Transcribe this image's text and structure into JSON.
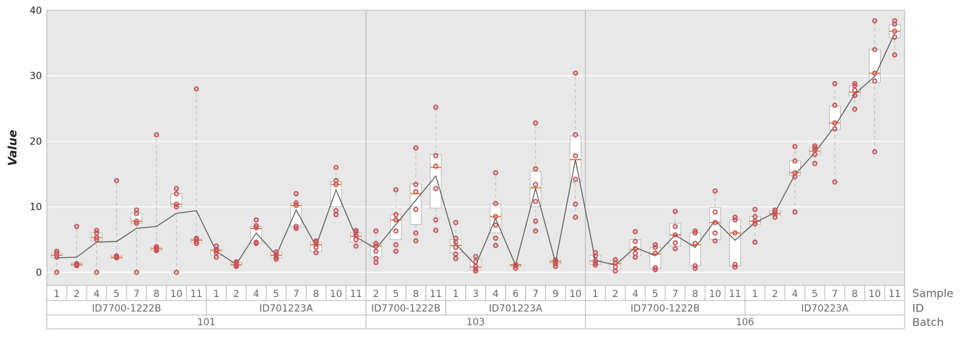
{
  "chart_data": {
    "type": "box",
    "ylabel": "Value",
    "ylim": [
      -2,
      40
    ],
    "yticks": [
      0,
      10,
      20,
      30,
      40
    ],
    "grid": true,
    "level_labels": [
      "Sample",
      "ID",
      "Batch"
    ],
    "colors": {
      "plot_bg": "#e8e8e8",
      "grid": "#ffffff",
      "box_fill": "#ffffff",
      "box_stroke": "#aaaaaa",
      "median": "#e8702a",
      "point": "#c8555a",
      "mean_line": "#555555",
      "whisker": "#bbbbbb",
      "label": "#666666"
    },
    "batches": [
      {
        "label": "101",
        "ids": [
          {
            "label": "ID7700-1222B",
            "samples": [
              {
                "label": "1",
                "q1": 2.3,
                "median": 2.6,
                "q3": 2.9,
                "wlo": 0.0,
                "whi": 3.2,
                "mean": 2.2,
                "points": [
                  0.0,
                  2.3,
                  2.6,
                  2.9,
                  3.2
                ]
              },
              {
                "label": "2",
                "q1": 1.0,
                "median": 1.2,
                "q3": 1.4,
                "wlo": 1.0,
                "whi": 7.0,
                "mean": 2.3,
                "points": [
                  1.0,
                  1.1,
                  1.2,
                  1.3,
                  7.0
                ]
              },
              {
                "label": "4",
                "q1": 4.8,
                "median": 5.3,
                "q3": 6.0,
                "wlo": 0.0,
                "whi": 6.4,
                "mean": 4.6,
                "points": [
                  0.0,
                  5.0,
                  5.3,
                  6.0,
                  6.4
                ]
              },
              {
                "label": "5",
                "q1": 2.1,
                "median": 2.3,
                "q3": 2.6,
                "wlo": 2.1,
                "whi": 14.0,
                "mean": 4.7,
                "points": [
                  2.2,
                  2.3,
                  2.5,
                  14.0
                ]
              },
              {
                "label": "7",
                "q1": 7.5,
                "median": 7.8,
                "q3": 9.0,
                "wlo": 0.0,
                "whi": 9.5,
                "mean": 6.7,
                "points": [
                  0.0,
                  7.5,
                  7.8,
                  9.0,
                  9.5
                ]
              },
              {
                "label": "8",
                "q1": 3.3,
                "median": 3.6,
                "q3": 3.8,
                "wlo": 3.3,
                "whi": 21.0,
                "mean": 7.0,
                "points": [
                  3.3,
                  3.5,
                  3.7,
                  3.9,
                  21.0
                ]
              },
              {
                "label": "10",
                "q1": 10.0,
                "median": 10.4,
                "q3": 12.0,
                "wlo": 0.0,
                "whi": 12.8,
                "mean": 9.0,
                "points": [
                  0.0,
                  10.0,
                  10.4,
                  12.0,
                  12.8
                ]
              },
              {
                "label": "11",
                "q1": 4.5,
                "median": 4.9,
                "q3": 5.1,
                "wlo": 4.5,
                "whi": 28.0,
                "mean": 9.4,
                "points": [
                  4.4,
                  4.7,
                  5.0,
                  5.2,
                  28.0
                ]
              }
            ]
          },
          {
            "label": "ID701223A",
            "samples": [
              {
                "label": "1",
                "q1": 2.6,
                "median": 3.3,
                "q3": 3.5,
                "wlo": 2.3,
                "whi": 4.0,
                "mean": 3.2,
                "points": [
                  2.3,
                  3.0,
                  3.3,
                  3.5,
                  4.0
                ]
              },
              {
                "label": "2",
                "q1": 1.0,
                "median": 1.2,
                "q3": 1.5,
                "wlo": 0.9,
                "whi": 1.6,
                "mean": 1.2,
                "points": [
                  0.9,
                  1.1,
                  1.3,
                  1.5,
                  1.6
                ]
              },
              {
                "label": "4",
                "q1": 4.5,
                "median": 6.7,
                "q3": 7.0,
                "wlo": 4.5,
                "whi": 8.0,
                "mean": 6.0,
                "points": [
                  4.4,
                  4.6,
                  6.8,
                  7.1,
                  8.0
                ]
              },
              {
                "label": "5",
                "q1": 2.2,
                "median": 2.6,
                "q3": 3.1,
                "wlo": 2.0,
                "whi": 3.2,
                "mean": 2.6,
                "points": [
                  2.0,
                  2.3,
                  2.7,
                  3.1
                ]
              },
              {
                "label": "7",
                "q1": 7.0,
                "median": 10.2,
                "q3": 10.6,
                "wlo": 6.6,
                "whi": 12.0,
                "mean": 9.5,
                "points": [
                  6.7,
                  7.0,
                  10.2,
                  10.6,
                  12.0
                ]
              },
              {
                "label": "8",
                "q1": 3.2,
                "median": 4.2,
                "q3": 4.6,
                "wlo": 3.0,
                "whi": 4.8,
                "mean": 4.0,
                "points": [
                  3.0,
                  3.8,
                  4.3,
                  4.6,
                  4.8
                ]
              },
              {
                "label": "10",
                "q1": 10.0,
                "median": 13.4,
                "q3": 13.8,
                "wlo": 8.8,
                "whi": 16.0,
                "mean": 12.6,
                "points": [
                  8.8,
                  9.4,
                  13.4,
                  14.0,
                  16.0
                ]
              },
              {
                "label": "11",
                "q1": 4.6,
                "median": 5.5,
                "q3": 6.0,
                "wlo": 4.0,
                "whi": 6.4,
                "mean": 5.4,
                "points": [
                  4.0,
                  5.0,
                  5.6,
                  6.1,
                  6.4
                ]
              }
            ]
          }
        ]
      },
      {
        "label": "103",
        "ids": [
          {
            "label": "ID7700-1222B",
            "samples": [
              {
                "label": "2",
                "q1": 2.2,
                "median": 4.0,
                "q3": 4.4,
                "wlo": 1.5,
                "whi": 6.3,
                "mean": 3.6,
                "points": [
                  1.5,
                  2.1,
                  3.2,
                  4.0,
                  4.4,
                  6.3
                ]
              },
              {
                "label": "5",
                "q1": 5.0,
                "median": 8.0,
                "q3": 8.8,
                "wlo": 3.2,
                "whi": 12.6,
                "mean": 7.3,
                "points": [
                  3.2,
                  4.2,
                  6.3,
                  8.0,
                  8.8,
                  12.6
                ]
              },
              {
                "label": "8",
                "q1": 7.3,
                "median": 12.0,
                "q3": 13.5,
                "wlo": 4.8,
                "whi": 19.0,
                "mean": 11.0,
                "points": [
                  4.8,
                  6.0,
                  9.6,
                  12.3,
                  13.4,
                  19.0
                ]
              },
              {
                "label": "11",
                "q1": 9.8,
                "median": 16.0,
                "q3": 18.0,
                "wlo": 6.4,
                "whi": 25.2,
                "mean": 14.7,
                "points": [
                  6.4,
                  8.0,
                  12.8,
                  16.2,
                  17.8,
                  25.2
                ]
              }
            ]
          },
          {
            "label": "ID701223A",
            "samples": [
              {
                "label": "1",
                "q1": 3.0,
                "median": 4.1,
                "q3": 5.0,
                "wlo": 2.1,
                "whi": 7.6,
                "mean": 4.3,
                "points": [
                  2.1,
                  2.8,
                  3.8,
                  4.6,
                  5.2,
                  7.6
                ]
              },
              {
                "label": "3",
                "q1": 0.4,
                "median": 0.8,
                "q3": 2.0,
                "wlo": 0.2,
                "whi": 2.4,
                "mean": 1.1,
                "points": [
                  0.2,
                  0.5,
                  0.9,
                  1.6,
                  2.4
                ]
              },
              {
                "label": "4",
                "q1": 6.0,
                "median": 8.5,
                "q3": 10.4,
                "wlo": 4.1,
                "whi": 15.2,
                "mean": 8.2,
                "points": [
                  4.1,
                  5.2,
                  7.2,
                  8.5,
                  10.5,
                  15.2
                ]
              },
              {
                "label": "6",
                "q1": 0.9,
                "median": 1.1,
                "q3": 1.2,
                "wlo": 0.6,
                "whi": 1.3,
                "mean": 1.1,
                "points": [
                  0.6,
                  1.0,
                  1.2
                ]
              },
              {
                "label": "7",
                "q1": 10.0,
                "median": 12.9,
                "q3": 15.4,
                "wlo": 6.3,
                "whi": 22.8,
                "mean": 12.8,
                "points": [
                  6.3,
                  7.8,
                  10.8,
                  13.4,
                  15.8,
                  22.8
                ]
              },
              {
                "label": "9",
                "q1": 1.3,
                "median": 1.6,
                "q3": 1.8,
                "wlo": 0.9,
                "whi": 1.9,
                "mean": 1.5,
                "points": [
                  0.9,
                  1.3,
                  1.7,
                  1.9
                ]
              },
              {
                "label": "10",
                "q1": 13.8,
                "median": 17.2,
                "q3": 20.8,
                "wlo": 8.4,
                "whi": 30.4,
                "mean": 17.2,
                "points": [
                  8.4,
                  10.4,
                  14.2,
                  17.8,
                  21.0,
                  30.4
                ]
              }
            ]
          }
        ]
      },
      {
        "label": "106",
        "ids": [
          {
            "label": "ID7700-1222B",
            "samples": [
              {
                "label": "1",
                "q1": 1.2,
                "median": 1.7,
                "q3": 2.6,
                "wlo": 1.1,
                "whi": 3.0,
                "mean": 1.8,
                "points": [
                  1.1,
                  1.4,
                  1.8,
                  2.5,
                  3.0
                ]
              },
              {
                "label": "2",
                "q1": 0.4,
                "median": 1.3,
                "q3": 1.8,
                "wlo": 0.2,
                "whi": 2.0,
                "mean": 1.1,
                "points": [
                  0.2,
                  0.8,
                  1.4,
                  1.9
                ]
              },
              {
                "label": "4",
                "q1": 2.5,
                "median": 3.5,
                "q3": 5.0,
                "wlo": 2.2,
                "whi": 6.2,
                "mean": 3.8,
                "points": [
                  2.3,
                  2.9,
                  3.6,
                  4.7,
                  6.2
                ]
              },
              {
                "label": "5",
                "q1": 0.6,
                "median": 2.8,
                "q3": 3.8,
                "wlo": 0.4,
                "whi": 4.2,
                "mean": 2.5,
                "points": [
                  0.4,
                  0.7,
                  2.9,
                  3.8,
                  4.2
                ]
              },
              {
                "label": "7",
                "q1": 4.0,
                "median": 5.7,
                "q3": 7.5,
                "wlo": 3.5,
                "whi": 9.3,
                "mean": 5.7,
                "points": [
                  3.6,
                  4.5,
                  5.7,
                  7.0,
                  9.3
                ]
              },
              {
                "label": "8",
                "q1": 1.0,
                "median": 4.2,
                "q3": 6.0,
                "wlo": 0.6,
                "whi": 6.3,
                "mean": 3.8,
                "points": [
                  0.6,
                  1.0,
                  4.4,
                  6.0,
                  6.3
                ]
              },
              {
                "label": "10",
                "q1": 5.0,
                "median": 7.6,
                "q3": 9.9,
                "wlo": 4.8,
                "whi": 12.4,
                "mean": 7.9,
                "points": [
                  4.8,
                  6.0,
                  7.6,
                  9.2,
                  12.4
                ]
              },
              {
                "label": "11",
                "q1": 1.0,
                "median": 6.0,
                "q3": 8.0,
                "wlo": 0.8,
                "whi": 8.5,
                "mean": 4.9,
                "points": [
                  0.8,
                  1.2,
                  6.0,
                  8.0,
                  8.4
                ]
              }
            ]
          },
          {
            "label": "ID70223A",
            "samples": [
              {
                "label": "1",
                "q1": 7.3,
                "median": 7.8,
                "q3": 8.5,
                "wlo": 4.6,
                "whi": 9.6,
                "mean": 7.6,
                "points": [
                  4.6,
                  7.4,
                  7.8,
                  8.5,
                  9.6
                ]
              },
              {
                "label": "2",
                "q1": 8.8,
                "median": 9.0,
                "q3": 9.4,
                "wlo": 8.4,
                "whi": 9.7,
                "mean": 9.1,
                "points": [
                  8.4,
                  8.9,
                  9.2,
                  9.5
                ]
              },
              {
                "label": "4",
                "q1": 14.8,
                "median": 15.2,
                "q3": 17.0,
                "wlo": 9.2,
                "whi": 19.2,
                "mean": 14.9,
                "points": [
                  9.2,
                  14.6,
                  15.2,
                  17.0,
                  19.2
                ]
              },
              {
                "label": "5",
                "q1": 18.0,
                "median": 18.5,
                "q3": 19.0,
                "wlo": 16.6,
                "whi": 19.3,
                "mean": 18.3,
                "points": [
                  16.6,
                  18.0,
                  18.6,
                  19.0,
                  19.3
                ]
              },
              {
                "label": "7",
                "q1": 21.8,
                "median": 22.8,
                "q3": 25.4,
                "wlo": 13.8,
                "whi": 28.8,
                "mean": 22.3,
                "points": [
                  13.8,
                  21.9,
                  22.8,
                  25.5,
                  28.8
                ]
              },
              {
                "label": "8",
                "q1": 27.0,
                "median": 27.5,
                "q3": 28.5,
                "wlo": 24.9,
                "whi": 28.8,
                "mean": 27.2,
                "points": [
                  24.9,
                  27.0,
                  27.8,
                  28.5,
                  28.8
                ]
              },
              {
                "label": "10",
                "q1": 29.0,
                "median": 30.4,
                "q3": 34.0,
                "wlo": 18.4,
                "whi": 38.4,
                "mean": 29.9,
                "points": [
                  18.4,
                  29.2,
                  30.4,
                  34.0,
                  38.4
                ]
              },
              {
                "label": "11",
                "q1": 35.8,
                "median": 36.8,
                "q3": 37.8,
                "wlo": 33.2,
                "whi": 38.4,
                "mean": 36.5,
                "points": [
                  33.2,
                  35.9,
                  36.8,
                  37.9,
                  38.4
                ]
              }
            ]
          }
        ]
      }
    ]
  }
}
